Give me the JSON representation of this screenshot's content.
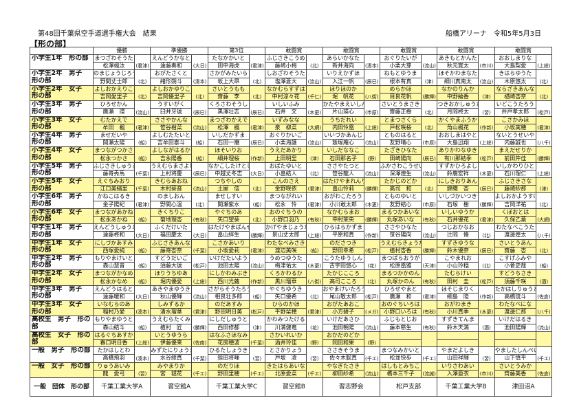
{
  "header": {
    "title": "第48回千葉県空手道選手権大会　結果",
    "venue": "船橋アリーナ　令和5年5月3日",
    "section": "【形の部】"
  },
  "columns": [
    "優勝",
    "準優勝",
    "第3位",
    "敢闘賞",
    "敢闘賞",
    "敢闘賞",
    "敢闘賞",
    "敢闘賞"
  ],
  "highlight_color": "#fff9a6",
  "rows": [
    {
      "category": "小学生1年　形の部",
      "highlight": false,
      "entries": [
        [
          "まつざわそうた",
          "松澤颯汰",
          "(君津)"
        ],
        [
          "えんどうかなと",
          "遠藤奏和",
          "(大日)"
        ],
        [
          "たなかかいと",
          "田中海虎",
          "(君津)"
        ],
        [
          "ふじさきこうめ",
          "藤崎小梅",
          "(北)"
        ],
        [
          "あらいかなた",
          "新井海向",
          "(湊本)"
        ],
        [
          "おぐりたいが",
          "小栗大芽",
          "(流山)"
        ],
        [
          "あきもとかんた",
          "秋元寛太",
          "(市川)"
        ],
        [
          "おおしまりな",
          "大島梨愛",
          "(上総)"
        ]
      ]
    },
    {
      "category": "小学生2年　男子　形の部",
      "highlight": false,
      "entries": [
        [
          "のまじょうじろう",
          "野間丈士郎",
          "(北)"
        ],
        [
          "おがたさくと",
          "緒形朔斗",
          "(湊本)"
        ],
        [
          "さかがみたいら",
          "坂上大昂",
          "(北)"
        ],
        [
          "しおざわそうた",
          "塩澤蒼大",
          "(流山)"
        ],
        [
          "いりえかずほ",
          "入江一帆",
          "(辰巳)"
        ],
        [
          "ねもとゆうま",
          "根本有真",
          "(津)"
        ],
        [
          "ほそかわまなた",
          "細川真南太",
          "(流山)"
        ],
        [
          "きはらゆうた",
          "木原悠太",
          "(北)"
        ]
      ]
    },
    {
      "category": "小学生2年　女子　形の部",
      "highlight": true,
      "entries": [
        [
          "よしおかえりこ",
          "吉岡愛里子",
          "(北)"
        ],
        [
          "よしおかゆりこ",
          "吉岡優里子",
          "(北)"
        ],
        [
          "さいとうもも",
          "齋藤　李",
          "(北)"
        ],
        [
          "なかむらすずは",
          "中村涼々花",
          "(千仁)"
        ],
        [
          "ほりほのか",
          "堀　帆花",
          "(八街)"
        ],
        [
          "めらかほ",
          "目良花帆",
          "(勝輝)"
        ],
        [
          "なかのりんか",
          "中野綸香",
          "(津)"
        ],
        [
          "ならざきあんな",
          "楢崎杏奈",
          "(北)"
        ]
      ]
    },
    {
      "category": "小学生3年　男子　形の部",
      "highlight": false,
      "entries": [
        [
          "ひろせかん",
          "廣瀬　環",
          "(流山)"
        ],
        [
          "うすいがく",
          "臼井牙琥",
          "(辰巳)"
        ],
        [
          "くろさわそうし",
          "黒澤壮志",
          "(辰巳)"
        ],
        [
          "いしいふみ",
          "石井　文",
          "(木更)"
        ],
        [
          "かたやまえいしん",
          "片山瑛心",
          "(市原)"
        ],
        [
          "さいとうまさき",
          "齋藤正樹",
          "(北)"
        ],
        [
          "つきおかしゅうた",
          "月岡柊太",
          "(習)"
        ],
        [
          "いどこうたろう",
          "井戸孝太郎",
          "(松戸)"
        ]
      ]
    },
    {
      "category": "小学生3年　女子　形の部",
      "highlight": true,
      "entries": [
        [
          "むたかえで",
          "牟田　楓",
          "(君津)"
        ],
        [
          "ささやかんな",
          "笹谷柑菜",
          "(流山)"
        ],
        [
          "まつざわかえで",
          "松澤　楓",
          "(君津)"
        ],
        [
          "いずみなな",
          "泉　柳菜",
          "(大網)"
        ],
        [
          "うちだれい",
          "内田怜凰",
          "(上総)"
        ],
        [
          "とまつさくら",
          "戸松咲桜",
          "(北)"
        ],
        [
          "かくやまふうか",
          "角山楓花",
          "(作新)"
        ],
        [
          "こさかみほ",
          "小坂実穂",
          "(君津)"
        ]
      ]
    },
    {
      "category": "小学生4年　男子　形の部",
      "highlight": false,
      "entries": [
        [
          "ませだいや",
          "間瀬太陽",
          "(船)"
        ],
        [
          "よしむたたいと",
          "吉牟田泰斗",
          "(船)"
        ],
        [
          "いしだかずま",
          "石田一磨",
          "(辰巳)"
        ],
        [
          "おぐりかいご",
          "小栗海護",
          "(流山)"
        ],
        [
          "いいづかあんじ",
          "飯塚庵心",
          "(流山)"
        ],
        [
          "とものはると",
          "友野晴心",
          "(市原)"
        ],
        [
          "おおしまはやと",
          "大島迅翔",
          "(上総)"
        ],
        [
          "ないとうせいや",
          "内藤誠也",
          "(八千)"
        ]
      ]
    },
    {
      "category": "小学生4年　女子　形の部",
      "highlight": true,
      "entries": [
        [
          "まつながつかさ",
          "松永つかさ",
          "(船)"
        ],
        [
          "よしながはるか",
          "吉永陽香",
          "(船)"
        ],
        [
          "ほそいりお",
          "細井理桜",
          "(作新)"
        ],
        [
          "うえだあかり",
          "上田明里",
          "(津)"
        ],
        [
          "いしだななこ",
          "石田那名子",
          "(野)"
        ],
        [
          "たざきひなた",
          "田崎陽向",
          "(辰巳)"
        ],
        [
          "ありかわなゆき",
          "有川那結季",
          "(松戸)"
        ],
        [
          "まえだせりか",
          "前田芹佳",
          "(勝輝)"
        ]
      ]
    },
    {
      "category": "小学生5年　男子　形の部",
      "highlight": false,
      "entries": [
        [
          "ふじさきしゅうま",
          "藤嵜秀馬",
          "(千葉)"
        ],
        [
          "うえむらまさよし",
          "上村将慶",
          "(辰巳)"
        ],
        [
          "なかこしたけとし",
          "中越丈冬志",
          "(大日)"
        ],
        [
          "おばたゆいと",
          "小畠結人",
          "(北)"
        ],
        [
          "ささやたつと",
          "笹谷龍人",
          "(流山)"
        ],
        [
          "ふかさわこうせい",
          "深澤煌生",
          "(流山)"
        ],
        [
          "すずかひろよし",
          "鈴鹿宏祥",
          "(木更)"
        ],
        [
          "いしかわりひと",
          "石川理仁",
          "(上総)"
        ]
      ]
    },
    {
      "category": "小学生5年　女子　形の部",
      "highlight": true,
      "entries": [
        [
          "えぐちみおり",
          "江口美緒里",
          "(千葉)"
        ],
        [
          "きむらあおね",
          "木村葵音",
          "(流山)"
        ],
        [
          "つちやしの",
          "土屋　信",
          "(北)"
        ],
        [
          "こんのさえ",
          "金野咲依",
          "(君津)"
        ],
        [
          "はたけやまれんり",
          "畠山怜莉",
          "(勝輝)"
        ],
        [
          "たかじのどか",
          "髙司　和",
          "(北)"
        ],
        [
          "にしきおりあん",
          "錦織　杏",
          "(辰巳)"
        ],
        [
          "ふじさきさな",
          "藤崎紗那",
          "(津)"
        ]
      ]
    },
    {
      "category": "小学生6年　男子　形の部",
      "highlight": false,
      "entries": [
        [
          "かねこはるき",
          "金子陽紀",
          "(君津)"
        ],
        [
          "のましおん",
          "野間心温",
          "(北)"
        ],
        [
          "ませしすい",
          "間瀬紫水",
          "(船)"
        ],
        [
          "まつながれい",
          "松永　怜",
          "(君津)"
        ],
        [
          "おがわこたろう",
          "小川敢太郎",
          "(木更)"
        ],
        [
          "とものゆいと",
          "友野結心",
          "(市原)"
        ],
        [
          "いしづかいつき",
          "石塚　樹",
          "(勝輝)"
        ],
        [
          "よしおかようすけ",
          "吉岡洋祐",
          "(北)"
        ]
      ]
    },
    {
      "category": "小学生6年　女子　形の部",
      "highlight": true,
      "entries": [
        [
          "まつながあかね",
          "松永あかね",
          "(船)"
        ],
        [
          "きくちりこ",
          "菊地理杏",
          "(有秋)"
        ],
        [
          "やぐちのあ",
          "矢口望葵",
          "(北)"
        ],
        [
          "おのぐちうの",
          "小野口羽乃",
          "(有秋)"
        ],
        [
          "なかむらまお",
          "中村茉央",
          "(勝輝)"
        ],
        [
          "まるつかあいな",
          "丸塚あいな",
          "(有秋)"
        ],
        [
          "いしいゆうか",
          "石井優花",
          "(君津)"
        ],
        [
          "くぼおとは",
          "久保乙葉",
          "(大網)"
        ]
      ]
    },
    {
      "category": "中学生1年　男子　形の部",
      "highlight": false,
      "entries": [
        [
          "えんどうしゅうと",
          "遠藤柊和",
          "(大日)"
        ],
        [
          "ふくだけいた",
          "福田慶太",
          "(大日)"
        ],
        [
          "はたけやまばんせい",
          "畠山絆生",
          "(勝輝)"
        ],
        [
          "かげやまじょうたろう",
          "景山丈太郎",
          "(上総)"
        ],
        [
          "ひらはらかずま",
          "平原和真",
          "(作新)"
        ],
        [
          "ささやひなた",
          "笹谷陽向",
          "(流山)"
        ],
        [
          "つじおかなお",
          "辻岡　脩",
          "(北)"
        ],
        [
          "わたなべこうた",
          "渡邊煌太",
          "(八千)"
        ]
      ]
    },
    {
      "category": "中学生1年　女子　形の部",
      "highlight": true,
      "entries": [
        [
          "にしづかあすみ",
          "西塚愛純",
          "(船)"
        ],
        [
          "ふじさきあんな",
          "藤嵜杏奈",
          "(千葉)"
        ],
        [
          "こさかあいり",
          "小坂愛莉",
          "(君津)"
        ],
        [
          "わたなべみさき",
          "渡辺美咲",
          "(船)"
        ],
        [
          "のださつき",
          "野田幸希",
          "(松戸)"
        ],
        [
          "うえむらきょうか",
          "植村杏香",
          "(勝輝)"
        ],
        [
          "すずきゆうな",
          "鈴木優奈",
          "(辰巳)"
        ],
        [
          "さいとうあん",
          "齋藤　杏",
          "(北)"
        ]
      ]
    },
    {
      "category": "中学生2年　男子　形の部",
      "highlight": false,
      "entries": [
        [
          "もりやまけいと",
          "森山慧音",
          "(船)"
        ],
        [
          "すどうだいご",
          "須藤大琥",
          "(松戸)"
        ],
        [
          "いけだたいよう",
          "池田太陽",
          "(流山)"
        ],
        [
          "うめつゆうた",
          "梅津佑太",
          "(木更)"
        ],
        [
          "こうたゆうしん",
          "古宇田悠心",
          "(花)"
        ],
        [
          "まつばらおうが",
          "松原凰雅",
          "(天津)"
        ],
        [
          "こやまれお",
          "小山玲穏",
          "(北)"
        ],
        [
          "こすげふみや",
          "小菅史哉",
          "(船)"
        ]
      ]
    },
    {
      "category": "中学生2年　女子　形の部",
      "highlight": true,
      "entries": [
        [
          "まつながかなめ",
          "松永かなめ",
          "(船)"
        ],
        [
          "ほりうちゆあ",
          "堀内優愛",
          "(上総)"
        ],
        [
          "にしかわみぶき",
          "西川光蕗",
          "(作新)"
        ],
        [
          "くろかわるか",
          "黒川瑠華",
          "(八街)"
        ],
        [
          "たかじこころ",
          "髙司こころ",
          "(北)"
        ],
        [
          "まるつかかのん",
          "丸塚かのん",
          "(有秋)"
        ],
        [
          "たむらけい",
          "田村　圭",
          "(松戸)"
        ],
        [
          "すどうちさき",
          "須藤千咲",
          "(酒)"
        ]
      ]
    },
    {
      "category": "中学生3年　男子　形の部",
      "highlight": false,
      "entries": [
        [
          "えんどうはると",
          "遠藤暖和",
          "(大日)"
        ],
        [
          "あきやまゆうき",
          "秋山優輝",
          "(流山)"
        ],
        [
          "さがらそうたろう",
          "相良壮多郎",
          "(船)"
        ],
        [
          "やぐちゆうき",
          "矢口優希",
          "(北)"
        ],
        [
          "おやまけいたろう",
          "尾山敬太郎",
          "(松戸)"
        ],
        [
          "ひろせやまと",
          "廣瀬　和",
          "(君津)"
        ],
        [
          "ほそじまりく",
          "細島　陸",
          "(作新)"
        ],
        [
          "たかはしりゅうと",
          "高橋琉斗",
          "(佐倉)"
        ]
      ]
    },
    {
      "category": "中学生3年　女子　形の部",
      "highlight": true,
      "entries": [
        [
          "いなむらのあ",
          "稲村乃愛",
          "(湊本)"
        ],
        [
          "しみずるか",
          "清水瑠華",
          "(君津)"
        ],
        [
          "のだあすみ",
          "野田明日美",
          "(松戸)"
        ],
        [
          "ひらのかほ",
          "平野栞穂",
          "(君津)"
        ],
        [
          "おがたあおこ",
          "小方碧子",
          "(メガ)"
        ],
        [
          "おのぐちいろは",
          "小野口いろは",
          "(有秋)"
        ],
        [
          "おがわまき",
          "小川真季",
          "(木更)"
        ],
        [
          "わたなべにな",
          "渡邊仁那",
          "(八千)"
        ]
      ]
    },
    {
      "category": "高校生　男子　形の部",
      "highlight": false,
      "entries": [
        [
          "もりやまゆうと",
          "森山結斗",
          "(船)"
        ],
        [
          "うえむらたくみ",
          "植村　匠",
          "(勝輝)"
        ],
        [
          "にしだしゅうと",
          "西田修都",
          "(津)"
        ],
        [
          "かわみつたける",
          "川満健竜",
          "(花)"
        ],
        [
          "いけだあさひ",
          "池田朝陽",
          "(流山)"
        ],
        [
          "ふじもとじお",
          "藤本慈生",
          "(有秋)"
        ],
        [
          "すずきてんま",
          "鈴木天満",
          "(酒)"
        ],
        [
          "いけだはるき",
          "池田陽輝",
          "(流山)"
        ]
      ]
    },
    {
      "category": "高校生　女子　形の部",
      "highlight": true,
      "entries": [
        [
          "はるぐちあすか",
          "春口明日香",
          "(上総)"
        ],
        [
          "いとうゆうら",
          "伊藤優来",
          "(佐南)"
        ],
        [
          "はなふさほなみ",
          "花房穂波",
          "(千葉)"
        ],
        [
          "さかいれいか",
          "酒井玲佳",
          "(野)"
        ],
        [
          "おかだのどか",
          "岡田和果",
          "(野)"
        ],
        [
          "",
          "",
          ""
        ],
        [
          "",
          "",
          ""
        ],
        [
          "",
          "",
          ""
        ]
      ]
    },
    {
      "category": "一般　男子　形の部",
      "highlight": false,
      "entries": [
        [
          "たかはしとわ",
          "高橋飛羽",
          "(湊本)"
        ],
        [
          "みずたにりょうま",
          "水谷綾真",
          "(千葉)"
        ],
        [
          "ひるたしょうき",
          "蛭田将暉",
          "(習)"
        ],
        [
          "とさかりょう",
          "戸坂　凌",
          "(習)"
        ],
        [
          "ささきそうま",
          "佐々木聡真",
          "(千エ)"
        ],
        [
          "まつなみかいと",
          "松並快歩",
          "(千エ)"
        ],
        [
          "やまだよしき",
          "山田祥輝",
          "(習)"
        ],
        [
          "やましたしんぺい",
          "山下慎平",
          "(千エ)"
        ]
      ]
    },
    {
      "category": "一般　女子　形の部",
      "highlight": true,
      "entries": [
        [
          "りゅうあいみ",
          "龍　愛弓",
          "(習)"
        ],
        [
          "みやまりか",
          "宮　毬花",
          "(千エ)"
        ],
        [
          "のだりほ",
          "野田里穂",
          "(千エ)"
        ],
        [
          "きたはらあいな",
          "北原愛菜",
          "(千エ)"
        ],
        [
          "やなぎたさき",
          "柳田紗希",
          "(流山)"
        ],
        [
          "はしもとみちこ",
          "橋本三千子",
          "(流誠)"
        ],
        [
          "いりさわあい",
          "入澤亜衣",
          "(市川)"
        ],
        [
          "さいとうみか",
          "齊藤美香",
          "(佐倉)"
        ]
      ]
    }
  ],
  "team": {
    "category": "一般　団体　形の部",
    "entries": [
      "千葉工業大学A",
      "習空館A",
      "千葉工業大学C",
      "習空館B",
      "習志野会",
      "松戸支部",
      "千葉工業大学B",
      "津田沼A"
    ]
  }
}
